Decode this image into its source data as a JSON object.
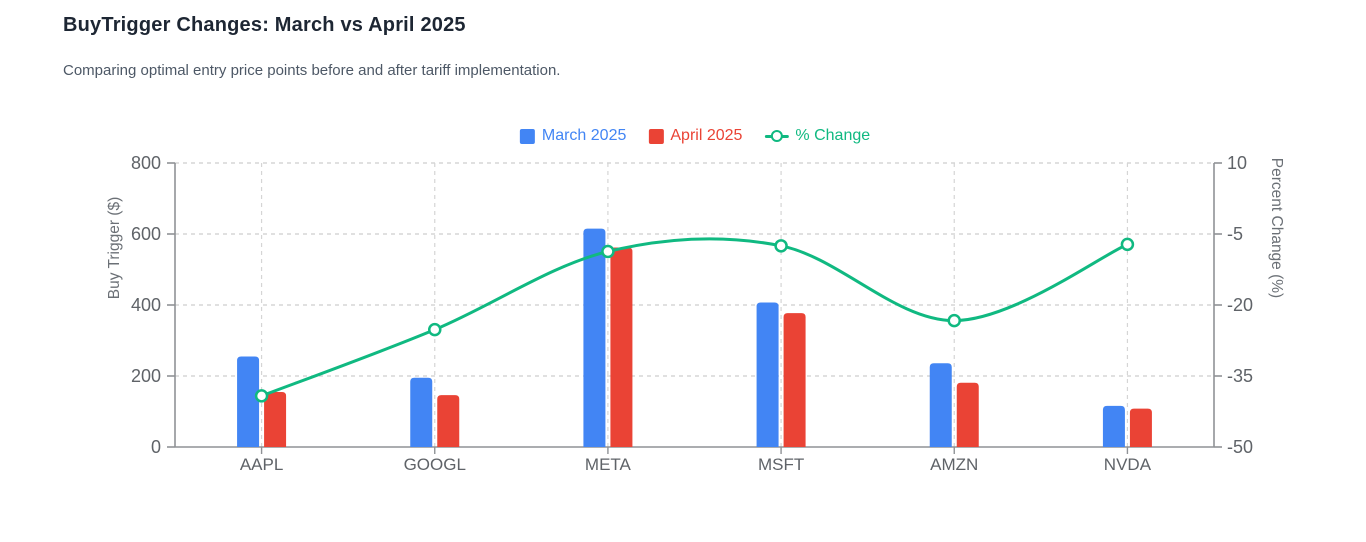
{
  "header": {
    "title": "BuyTrigger Changes: March vs April 2025",
    "subtitle": "Comparing optimal entry price points before and after tariff implementation."
  },
  "colors": {
    "march_blue": "#4285f4",
    "april_red": "#ea4335",
    "change_green": "#10b981",
    "grid": "#d5d5d5",
    "axis_line": "#8f9296",
    "tick_text": "#5f6368",
    "axis_title_text": "#6b7076",
    "title_text": "#1d2633",
    "subtitle_text": "#4d5866"
  },
  "chart_data": {
    "type": "bar+line",
    "title": "BuyTrigger Changes: March vs April 2025",
    "categories": [
      "AAPL",
      "GOOGL",
      "META",
      "MSFT",
      "AMZN",
      "NVDA"
    ],
    "series": [
      {
        "name": "March 2025",
        "type": "bar",
        "axis": "left",
        "color": "#4285f4",
        "marker": "square",
        "values": [
          255,
          195,
          615,
          407,
          236,
          116
        ]
      },
      {
        "name": "April 2025",
        "type": "bar",
        "axis": "left",
        "color": "#ea4335",
        "marker": "square",
        "values": [
          155,
          146,
          562,
          377,
          181,
          108
        ]
      },
      {
        "name": "% Change",
        "type": "line",
        "axis": "right",
        "color": "#10b981",
        "marker": "line-circle",
        "values": [
          -39.2,
          -25.2,
          -8.7,
          -7.5,
          -23.3,
          -7.2
        ]
      }
    ],
    "left_axis": {
      "label": "Buy Trigger ($)",
      "min": 0,
      "max": 800,
      "ticks": [
        800,
        600,
        400,
        200,
        0
      ]
    },
    "right_axis": {
      "label": "Percent Change (%)",
      "min": -50,
      "max": 10,
      "ticks": [
        10,
        -5,
        -20,
        -35,
        -50
      ]
    },
    "grid": "dashed",
    "legend_position": "top"
  }
}
